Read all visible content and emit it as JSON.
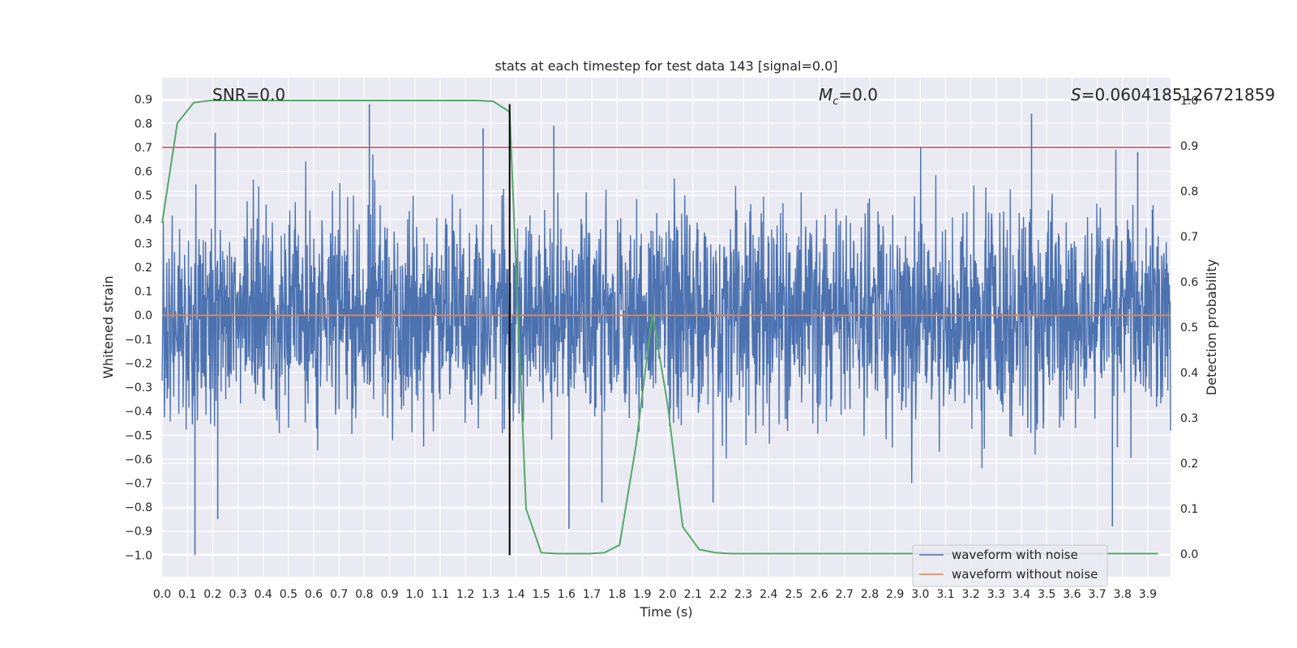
{
  "chart_data": {
    "type": "line",
    "title": "stats at each timestep for test data 143 [signal=0.0]",
    "xlabel": "Time (s)",
    "ylabel": "Whitened strain",
    "y2label": "Detection probability",
    "xlim": [
      0.0,
      3.99
    ],
    "ylim": [
      -1.09,
      0.99
    ],
    "y2lim": [
      -0.05,
      1.05
    ],
    "x_ticks": [
      0.0,
      0.1,
      0.2,
      0.3,
      0.4,
      0.5,
      0.6,
      0.7,
      0.8,
      0.9,
      1.0,
      1.1,
      1.2,
      1.3,
      1.4,
      1.5,
      1.6,
      1.7,
      1.8,
      1.9,
      2.0,
      2.1,
      2.2,
      2.3,
      2.4,
      2.5,
      2.6,
      2.7,
      2.8,
      2.9,
      3.0,
      3.1,
      3.2,
      3.3,
      3.4,
      3.5,
      3.6,
      3.7,
      3.8,
      3.9
    ],
    "x_tick_labels": [
      "0.0",
      "0.1",
      "0.2",
      "0.3",
      "0.4",
      "0.5",
      "0.6",
      "0.7",
      "0.8",
      "0.9",
      "1.0",
      "1.1",
      "1.2",
      "1.3",
      "1.4",
      "1.5",
      "1.6",
      "1.7",
      "1.8",
      "1.9",
      "2.0",
      "2.1",
      "2.2",
      "2.3",
      "2.4",
      "2.5",
      "2.6",
      "2.7",
      "2.8",
      "2.9",
      "3.0",
      "3.1",
      "3.2",
      "3.3",
      "3.4",
      "3.5",
      "3.6",
      "3.7",
      "3.8",
      "3.9"
    ],
    "y_ticks": [
      0.9,
      0.8,
      0.7,
      0.6,
      0.5,
      0.4,
      0.3,
      0.2,
      0.1,
      0.0,
      -0.1,
      -0.2,
      -0.3,
      -0.4,
      -0.5,
      -0.6,
      -0.7,
      -0.8,
      -0.9,
      -1.0
    ],
    "y_tick_labels": [
      "0.9",
      "0.8",
      "0.7",
      "0.6",
      "0.5",
      "0.4",
      "0.3",
      "0.2",
      "0.1",
      "0.0",
      "−0.1",
      "−0.2",
      "−0.3",
      "−0.4",
      "−0.5",
      "−0.6",
      "−0.7",
      "−0.8",
      "−0.9",
      "−1.0"
    ],
    "y2_ticks": [
      1.0,
      0.9,
      0.8,
      0.7,
      0.6,
      0.5,
      0.4,
      0.3,
      0.2,
      0.1,
      0.0
    ],
    "y2_tick_labels": [
      "1.0",
      "0.9",
      "0.8",
      "0.7",
      "0.6",
      "0.5",
      "0.4",
      "0.3",
      "0.2",
      "0.1",
      "0.0"
    ],
    "grid": true,
    "legend_position": "lower-right",
    "annotations": {
      "snr": "SNR=0.0",
      "mc_symbol": "M",
      "mc_subscript": "c",
      "mc_value": "=0.0",
      "s_symbol": "S",
      "s_value": "=0.0604185126721859"
    },
    "series": [
      {
        "name": "waveform with noise",
        "color": "#4c72b0",
        "axis": "left",
        "style": "dense noise",
        "typical_envelope": [
          -0.45,
          0.45
        ],
        "spikes": [
          {
            "x": 0.13,
            "y": -1.0
          },
          {
            "x": 0.21,
            "y": 0.76
          },
          {
            "x": 0.22,
            "y": -0.85
          },
          {
            "x": 0.82,
            "y": 0.88
          },
          {
            "x": 1.27,
            "y": 0.78
          },
          {
            "x": 1.55,
            "y": 0.79
          },
          {
            "x": 1.61,
            "y": -0.89
          },
          {
            "x": 1.74,
            "y": -0.78
          },
          {
            "x": 2.18,
            "y": -0.78
          },
          {
            "x": 3.44,
            "y": 0.84
          },
          {
            "x": 3.76,
            "y": -0.88
          },
          {
            "x": 3.86,
            "y": 0.68
          }
        ]
      },
      {
        "name": "waveform without noise",
        "color": "#dd8452",
        "axis": "left",
        "x": [
          0.0,
          3.99
        ],
        "y": [
          0.0,
          0.0
        ]
      },
      {
        "name": "detection probability",
        "color": "#55a868",
        "axis": "right",
        "x": [
          0.0,
          0.06,
          0.125,
          0.19,
          0.25,
          0.5,
          0.75,
          1.0,
          1.25,
          1.31,
          1.375,
          1.44,
          1.5,
          1.56,
          1.625,
          1.69,
          1.75,
          1.81,
          1.875,
          1.94,
          2.0,
          2.06,
          2.125,
          2.19,
          2.25,
          2.5,
          2.75,
          3.0,
          3.25,
          3.5,
          3.75,
          3.94
        ],
        "y": [
          0.73,
          0.95,
          0.995,
          1.0,
          1.0,
          1.0,
          1.0,
          1.0,
          1.0,
          0.998,
          0.975,
          0.1,
          0.003,
          0.001,
          0.001,
          0.001,
          0.003,
          0.02,
          0.24,
          0.53,
          0.33,
          0.06,
          0.01,
          0.003,
          0.001,
          0.001,
          0.001,
          0.001,
          0.001,
          0.001,
          0.001,
          0.001
        ]
      }
    ],
    "hlines": [
      {
        "axis": "left",
        "y": 0.7,
        "color": "#c44e52"
      }
    ],
    "vlines": [
      {
        "x": 1.375,
        "y_from": -1.0,
        "y_to": 0.88,
        "color": "#000000"
      }
    ],
    "legend_entries": [
      "waveform with noise",
      "waveform without noise"
    ]
  }
}
